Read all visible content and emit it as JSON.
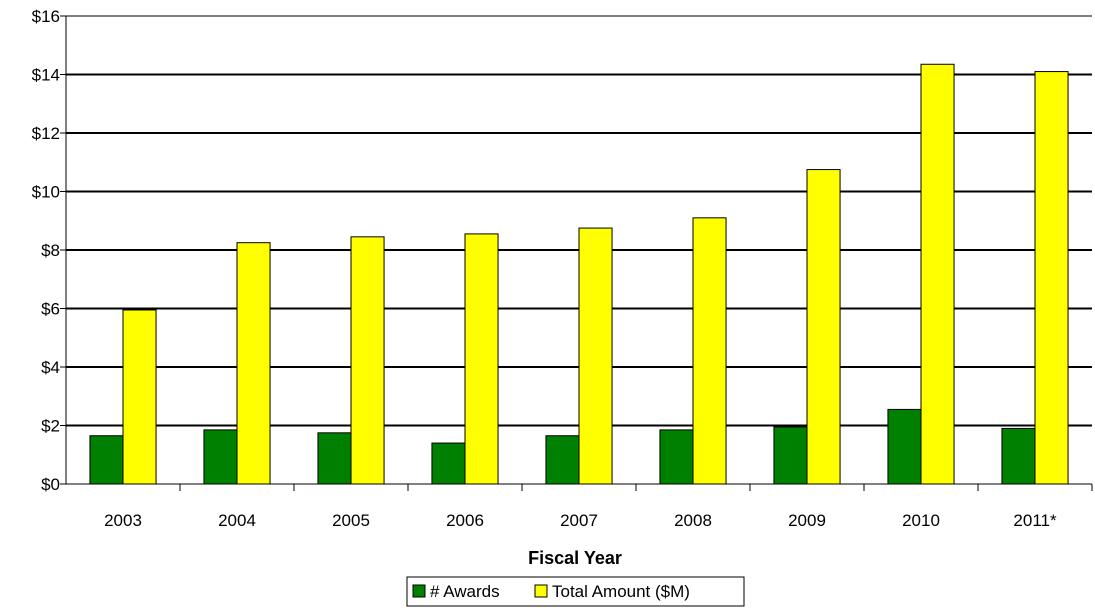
{
  "chart_data": {
    "type": "bar",
    "categories": [
      "2003",
      "2004",
      "2005",
      "2006",
      "2007",
      "2008",
      "2009",
      "2010",
      "2011*"
    ],
    "series": [
      {
        "name": "# Awards",
        "values": [
          1.65,
          1.85,
          1.75,
          1.4,
          1.65,
          1.85,
          1.95,
          2.55,
          1.9
        ],
        "color": "#008000"
      },
      {
        "name": "Total Amount ($M)",
        "values": [
          5.95,
          8.25,
          8.45,
          8.55,
          8.75,
          9.1,
          10.75,
          14.35,
          14.1
        ],
        "color": "#ffff00"
      }
    ],
    "y_ticks": [
      "$0",
      "$2",
      "$4",
      "$6",
      "$8",
      "$10",
      "$12",
      "$14",
      "$16"
    ],
    "ylim": [
      0,
      16
    ],
    "y_step": 2,
    "xlabel": "Fiscal Year",
    "ylabel": "",
    "title": "",
    "grid": true,
    "legend_position": "bottom-center"
  }
}
